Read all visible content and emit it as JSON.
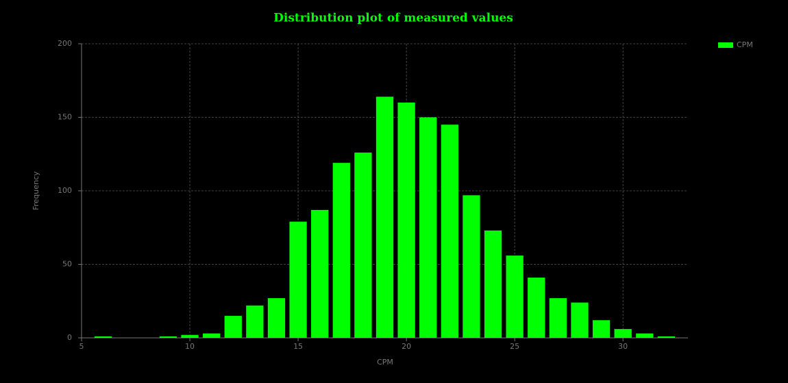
{
  "chart_data": {
    "type": "histogram",
    "title": "Distribution plot of measured values",
    "x_label": "CPM",
    "y_label": "Frequency",
    "bins": [
      5.5,
      6.5,
      7.5,
      8.5,
      9.5,
      10.5,
      11.5,
      12.5,
      13.5,
      14.5,
      15.5,
      16.5,
      17.5,
      18.5,
      19.5,
      20.5,
      21.5,
      22.5,
      23.5,
      24.5,
      25.5,
      26.5,
      27.5,
      28.5,
      29.5,
      30.5,
      31.5,
      32.5
    ],
    "series": [
      {
        "name": "CPM",
        "color": "#00ff00",
        "values": [
          1,
          0,
          0,
          1,
          2,
          3,
          15,
          22,
          27,
          79,
          87,
          119,
          126,
          164,
          160,
          150,
          145,
          97,
          73,
          56,
          41,
          27,
          24,
          12,
          6,
          3,
          1
        ]
      }
    ],
    "xlim": [
      5,
      33
    ],
    "ylim": [
      0,
      200
    ],
    "xticks": [
      5,
      10,
      15,
      20,
      25,
      30
    ],
    "yticks": [
      0,
      50,
      100,
      150,
      200
    ],
    "grid": true,
    "legend": "upper right"
  }
}
